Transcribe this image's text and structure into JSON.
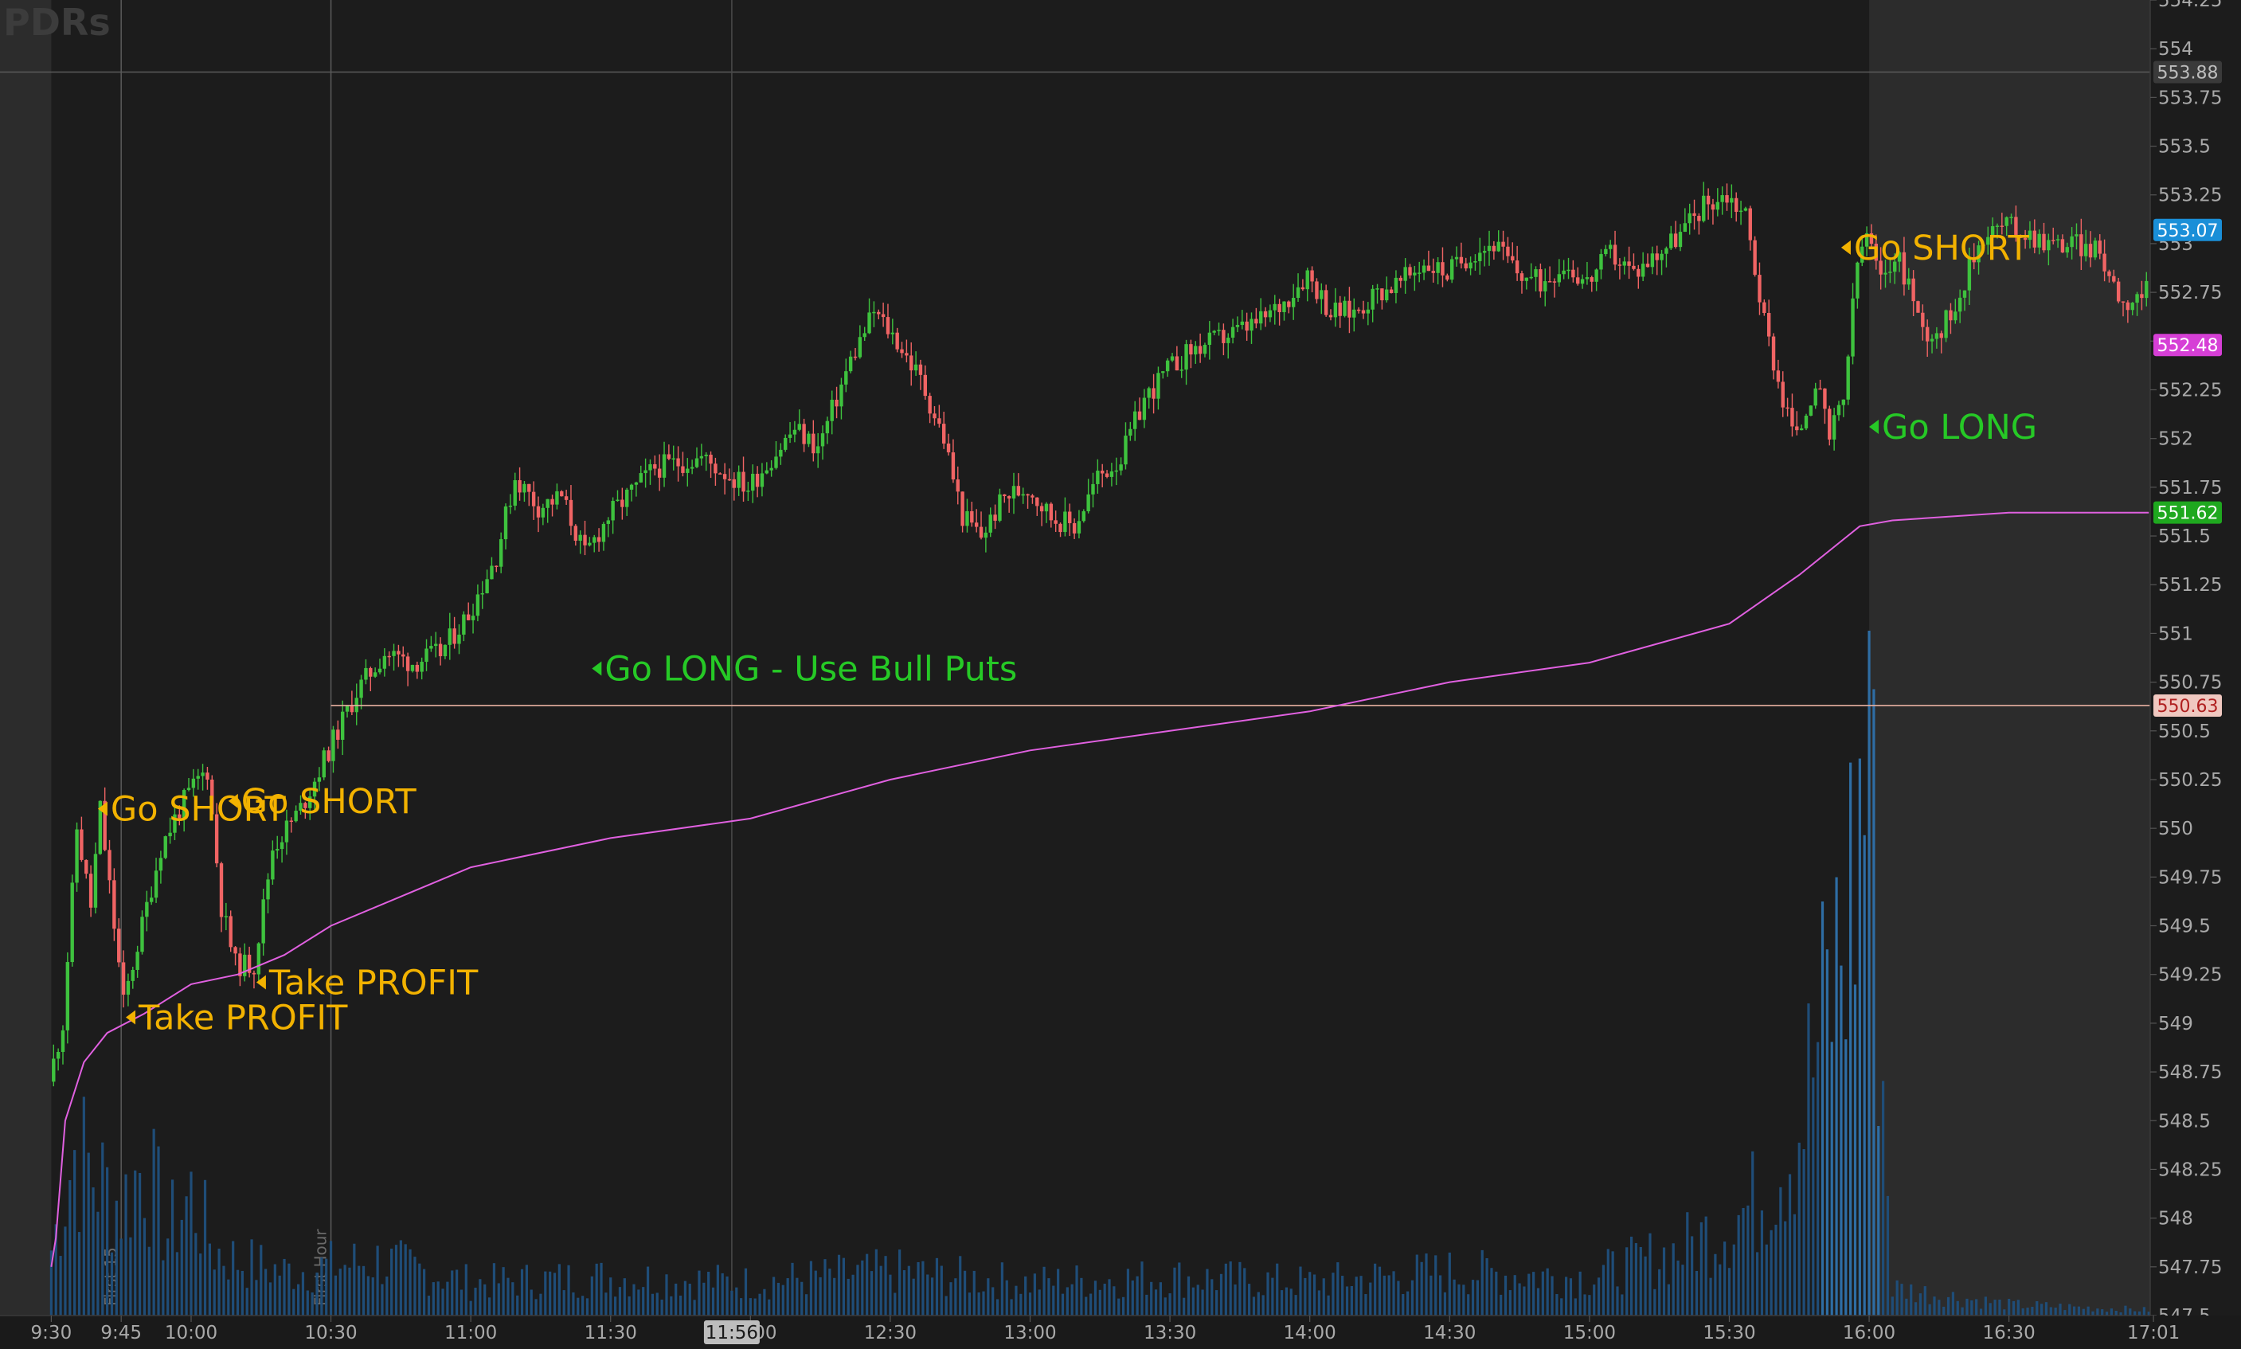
{
  "watermark": "PDRs",
  "colors": {
    "background": "#1c1c1c",
    "extended_hours_bg": "#2c2c2c",
    "up_candle": "#3ec23e",
    "down_candle": "#f06464",
    "vwap": "#e060e0",
    "volume": "#1f4d78",
    "volume_spike": "#2e6da4",
    "signal_short": "#f2b200",
    "signal_long": "#26c926",
    "axis_text": "#a9a9a9",
    "grid_marker": "#5a5a5a",
    "hline": "#e8b0a0"
  },
  "crosshair_time_label": "11:56",
  "markers": [
    {
      "time": "9:45",
      "label": "First 15"
    },
    {
      "time": "10:30",
      "label": "First Hour"
    }
  ],
  "chart_data": {
    "type": "candlestick",
    "title": "",
    "xlabel": "",
    "ylabel": "",
    "ylim": [
      547.5,
      554.25
    ],
    "y_ticks": [
      "554.25",
      "554",
      "553.75",
      "553.5",
      "553.25",
      "553",
      "552.75",
      "552.5",
      "552.25",
      "552",
      "551.75",
      "551.5",
      "551.25",
      "551",
      "550.75",
      "550.5",
      "550.25",
      "550",
      "549.75",
      "549.5",
      "549.25",
      "549",
      "548.75",
      "548.5",
      "548.25",
      "548",
      "547.75",
      "547.5"
    ],
    "x_ticks": [
      "9:30",
      "9:45",
      "10:00",
      "10:30",
      "11:00",
      "11:30",
      "12:00",
      "12:30",
      "13:00",
      "13:30",
      "14:00",
      "14:30",
      "15:00",
      "15:30",
      "16:00",
      "16:30",
      "17:01"
    ],
    "regular_session": [
      "9:30",
      "16:00"
    ],
    "price_labels": [
      {
        "name": "previous-close",
        "value": 553.88,
        "text": "553.88",
        "bg": "#3a3a3a",
        "fg": "#bdbdbd"
      },
      {
        "name": "last-price",
        "value": 553.07,
        "text": "553.07",
        "bg": "#1a8fd8",
        "fg": "#ffffff"
      },
      {
        "name": "extended-price",
        "value": 552.48,
        "text": "552.48",
        "bg": "#d63fd6",
        "fg": "#ffffff"
      },
      {
        "name": "vwap-value",
        "value": 551.62,
        "text": "551.62",
        "bg": "#1fa81f",
        "fg": "#ffffff"
      },
      {
        "name": "horizontal-line-level",
        "value": 550.63,
        "text": "550.63",
        "bg": "#f0c8c0",
        "fg": "#b02020"
      }
    ],
    "horizontal_line": {
      "value": 550.63,
      "from": "10:30"
    },
    "signals": [
      {
        "time": "9:40",
        "price": 550.1,
        "text": "Go SHORT",
        "kind": "short"
      },
      {
        "time": "9:46",
        "price": 549.03,
        "text": "Take PROFIT",
        "kind": "short"
      },
      {
        "time": "10:08",
        "price": 550.14,
        "text": "Go SHORT",
        "kind": "short"
      },
      {
        "time": "10:14",
        "price": 549.21,
        "text": "Take PROFIT",
        "kind": "short"
      },
      {
        "time": "11:26",
        "price": 550.82,
        "text": "Go LONG - Use Bull Puts",
        "kind": "long"
      },
      {
        "time": "15:54",
        "price": 552.98,
        "text": "Go SHORT",
        "kind": "short"
      },
      {
        "time": "16:00",
        "price": 552.06,
        "text": "Go LONG",
        "kind": "long"
      }
    ],
    "price_path": [
      [
        "9:30",
        548.7
      ],
      [
        "9:33",
        549.0
      ],
      [
        "9:36",
        550.0
      ],
      [
        "9:39",
        549.6
      ],
      [
        "9:41",
        550.1
      ],
      [
        "9:44",
        549.5
      ],
      [
        "9:46",
        549.1
      ],
      [
        "9:50",
        549.5
      ],
      [
        "9:54",
        549.9
      ],
      [
        "9:58",
        550.1
      ],
      [
        "10:02",
        550.25
      ],
      [
        "10:04",
        550.3
      ],
      [
        "10:07",
        549.6
      ],
      [
        "10:10",
        549.3
      ],
      [
        "10:14",
        549.3
      ],
      [
        "10:18",
        549.9
      ],
      [
        "10:24",
        550.1
      ],
      [
        "10:30",
        550.4
      ],
      [
        "10:36",
        550.7
      ],
      [
        "10:42",
        550.9
      ],
      [
        "10:48",
        550.85
      ],
      [
        "10:54",
        550.9
      ],
      [
        "11:00",
        551.1
      ],
      [
        "11:06",
        551.4
      ],
      [
        "11:10",
        551.8
      ],
      [
        "11:15",
        551.65
      ],
      [
        "11:20",
        551.7
      ],
      [
        "11:25",
        551.4
      ],
      [
        "11:30",
        551.6
      ],
      [
        "11:40",
        551.85
      ],
      [
        "11:50",
        551.9
      ],
      [
        "12:00",
        551.75
      ],
      [
        "12:10",
        552.05
      ],
      [
        "12:15",
        551.95
      ],
      [
        "12:22",
        552.4
      ],
      [
        "12:27",
        552.65
      ],
      [
        "12:32",
        552.5
      ],
      [
        "12:37",
        552.3
      ],
      [
        "12:42",
        552.0
      ],
      [
        "12:46",
        551.6
      ],
      [
        "12:50",
        551.5
      ],
      [
        "12:55",
        551.7
      ],
      [
        "13:00",
        551.75
      ],
      [
        "13:05",
        551.6
      ],
      [
        "13:10",
        551.55
      ],
      [
        "13:15",
        551.8
      ],
      [
        "13:20",
        551.9
      ],
      [
        "13:25",
        552.2
      ],
      [
        "13:30",
        552.35
      ],
      [
        "13:35",
        552.45
      ],
      [
        "13:40",
        552.5
      ],
      [
        "13:45",
        552.55
      ],
      [
        "13:50",
        552.6
      ],
      [
        "13:55",
        552.7
      ],
      [
        "14:00",
        552.85
      ],
      [
        "14:05",
        552.65
      ],
      [
        "14:10",
        552.65
      ],
      [
        "14:15",
        552.75
      ],
      [
        "14:20",
        552.8
      ],
      [
        "14:25",
        552.9
      ],
      [
        "14:30",
        552.85
      ],
      [
        "14:35",
        552.95
      ],
      [
        "14:40",
        553.0
      ],
      [
        "14:45",
        552.85
      ],
      [
        "14:50",
        552.8
      ],
      [
        "14:55",
        552.9
      ],
      [
        "15:00",
        552.8
      ],
      [
        "15:05",
        552.95
      ],
      [
        "15:10",
        552.85
      ],
      [
        "15:15",
        552.95
      ],
      [
        "15:20",
        553.05
      ],
      [
        "15:25",
        553.2
      ],
      [
        "15:30",
        553.25
      ],
      [
        "15:34",
        553.15
      ],
      [
        "15:38",
        552.6
      ],
      [
        "15:42",
        552.2
      ],
      [
        "15:45",
        552.0
      ],
      [
        "15:49",
        552.3
      ],
      [
        "15:52",
        552.0
      ],
      [
        "15:55",
        552.2
      ],
      [
        "15:58",
        552.9
      ],
      [
        "16:00",
        553.05
      ],
      [
        "16:03",
        552.8
      ],
      [
        "16:06",
        552.95
      ],
      [
        "16:09",
        552.8
      ],
      [
        "16:12",
        552.55
      ],
      [
        "16:16",
        552.55
      ],
      [
        "16:20",
        552.75
      ],
      [
        "16:25",
        553.05
      ],
      [
        "16:30",
        553.1
      ],
      [
        "16:35",
        553.05
      ],
      [
        "16:40",
        553.0
      ],
      [
        "16:45",
        553.0
      ],
      [
        "16:50",
        552.95
      ],
      [
        "16:55",
        552.7
      ],
      [
        "17:00",
        552.75
      ]
    ],
    "vwap_path": [
      [
        "9:30",
        547.75
      ],
      [
        "9:31",
        547.9
      ],
      [
        "9:33",
        548.5
      ],
      [
        "9:37",
        548.8
      ],
      [
        "9:42",
        548.95
      ],
      [
        "9:50",
        549.05
      ],
      [
        "10:00",
        549.2
      ],
      [
        "10:10",
        549.25
      ],
      [
        "10:20",
        549.35
      ],
      [
        "10:30",
        549.5
      ],
      [
        "10:45",
        549.65
      ],
      [
        "11:00",
        549.8
      ],
      [
        "11:30",
        549.95
      ],
      [
        "12:00",
        550.05
      ],
      [
        "12:30",
        550.25
      ],
      [
        "13:00",
        550.4
      ],
      [
        "13:30",
        550.5
      ],
      [
        "14:00",
        550.6
      ],
      [
        "14:30",
        550.75
      ],
      [
        "15:00",
        550.85
      ],
      [
        "15:30",
        551.05
      ],
      [
        "15:45",
        551.3
      ],
      [
        "15:58",
        551.55
      ],
      [
        "16:05",
        551.58
      ],
      [
        "16:30",
        551.62
      ],
      [
        "17:00",
        551.62
      ]
    ],
    "volume_profile": [
      [
        "9:30",
        0.12
      ],
      [
        "9:35",
        0.3
      ],
      [
        "9:40",
        0.25
      ],
      [
        "9:45",
        0.2
      ],
      [
        "9:50",
        0.28
      ],
      [
        "9:55",
        0.15
      ],
      [
        "10:00",
        0.22
      ],
      [
        "10:05",
        0.12
      ],
      [
        "10:10",
        0.1
      ],
      [
        "10:20",
        0.08
      ],
      [
        "10:40",
        0.1
      ],
      [
        "11:00",
        0.06
      ],
      [
        "11:30",
        0.07
      ],
      [
        "12:00",
        0.06
      ],
      [
        "12:30",
        0.08
      ],
      [
        "13:00",
        0.06
      ],
      [
        "13:30",
        0.07
      ],
      [
        "14:00",
        0.06
      ],
      [
        "14:30",
        0.08
      ],
      [
        "15:00",
        0.07
      ],
      [
        "15:20",
        0.12
      ],
      [
        "15:35",
        0.2
      ],
      [
        "15:45",
        0.35
      ],
      [
        "15:55",
        0.7
      ],
      [
        "15:58",
        0.9
      ],
      [
        "16:00",
        1.0
      ],
      [
        "16:05",
        0.05
      ],
      [
        "16:30",
        0.02
      ],
      [
        "17:00",
        0.01
      ]
    ]
  }
}
